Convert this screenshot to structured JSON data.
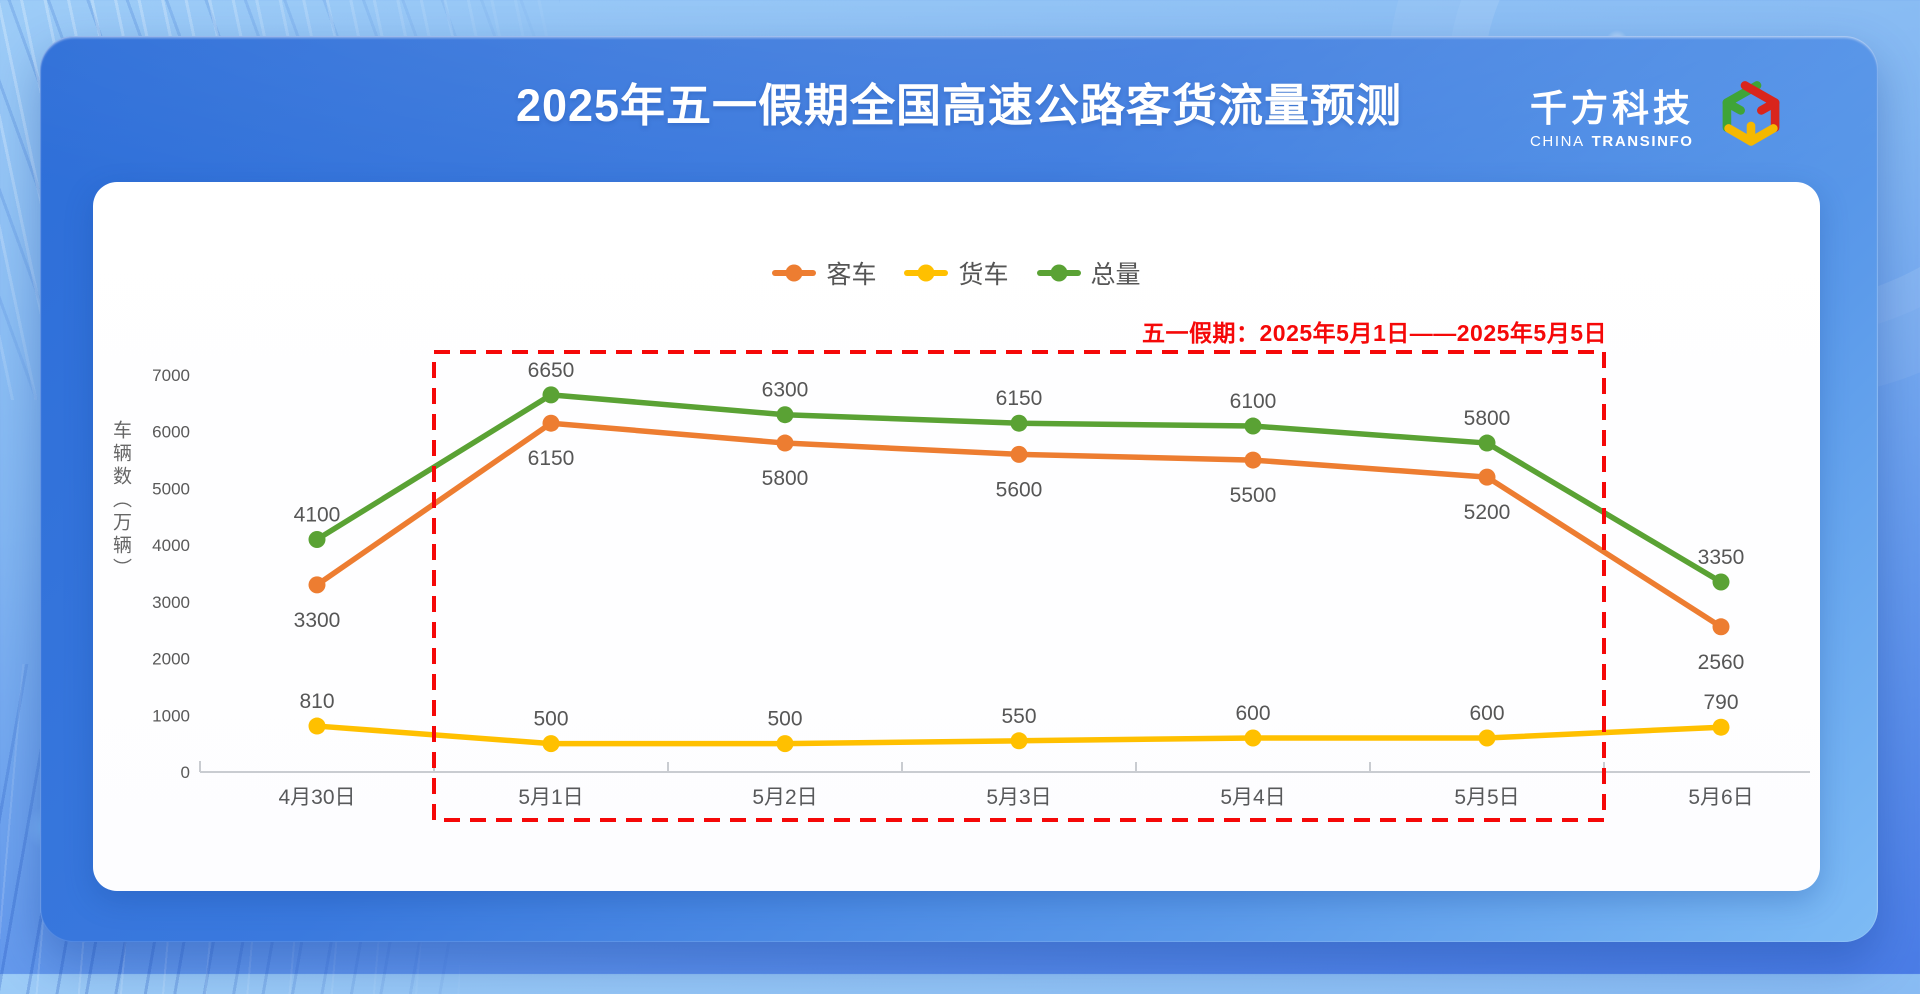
{
  "page": {
    "title": "2025年五一假期全国高速公路客货流量预测"
  },
  "logo": {
    "name": "千方科技",
    "subtitle_left": "CHINA",
    "subtitle_right": "TRANSINFO",
    "icon": "cube-arrows-icon",
    "icon_colors": {
      "green": "#3fa437",
      "red": "#d9251c",
      "yellow": "#f5b800"
    }
  },
  "chart_data": {
    "type": "line",
    "title": "",
    "categories": [
      "4月30日",
      "5月1日",
      "5月2日",
      "5月3日",
      "5月4日",
      "5月5日",
      "5月6日"
    ],
    "series": [
      {
        "key": "passenger-cars",
        "name": "客车",
        "color": "#ED7D31",
        "label_position": "below",
        "values": [
          3300,
          6150,
          5800,
          5600,
          5500,
          5200,
          2560
        ]
      },
      {
        "key": "trucks",
        "name": "货车",
        "color": "#FFC000",
        "label_position": "above",
        "values": [
          810,
          500,
          500,
          550,
          600,
          600,
          790
        ]
      },
      {
        "key": "total",
        "name": "总量",
        "color": "#5AA234",
        "label_position": "above",
        "values": [
          4100,
          6650,
          6300,
          6150,
          6100,
          5800,
          3350
        ]
      }
    ],
    "xlabel": "",
    "ylabel": "车辆数（万辆）",
    "ylim": [
      0,
      7000
    ],
    "yticks": [
      0,
      1000,
      2000,
      3000,
      4000,
      5000,
      6000,
      7000
    ],
    "grid": false,
    "legend_position": "top-center",
    "highlight_region": {
      "from_category_index": 1,
      "to_category_index": 5,
      "label": "五一假期：2025年5月1日——2025年5月5日",
      "color": "#F50808"
    }
  },
  "colors": {
    "panel_blue_start": "#2d6ed8",
    "panel_blue_end": "#7dbbf5",
    "card_background": "#ffffff",
    "axis_line": "#c9ccd1",
    "tick_text": "#595959"
  }
}
